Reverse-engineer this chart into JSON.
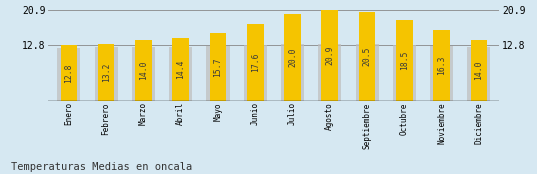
{
  "months": [
    "Enero",
    "Febrero",
    "Marzo",
    "Abril",
    "Mayo",
    "Junio",
    "Julio",
    "Agosto",
    "Septiembre",
    "Octubre",
    "Noviembre",
    "Diciembre"
  ],
  "values": [
    12.8,
    13.2,
    14.0,
    14.4,
    15.7,
    17.6,
    20.0,
    20.9,
    20.5,
    18.5,
    16.3,
    14.0
  ],
  "gray_heights": [
    12.2,
    12.3,
    12.5,
    12.3,
    12.6,
    12.8,
    13.0,
    13.0,
    13.0,
    12.9,
    12.6,
    12.4
  ],
  "bar_color_yellow": "#F5C400",
  "bar_color_gray": "#C0C0C0",
  "background_color": "#D6E8F2",
  "title": "Temperaturas Medias en oncala",
  "ymin": 0,
  "ymax": 20.9,
  "ytop": 22.0,
  "yticks": [
    12.8,
    20.9
  ],
  "hline_12": 12.8,
  "hline_20": 20.9,
  "title_fontsize": 7.5,
  "label_fontsize": 5.8,
  "tick_fontsize": 7,
  "month_fontsize": 5.5
}
